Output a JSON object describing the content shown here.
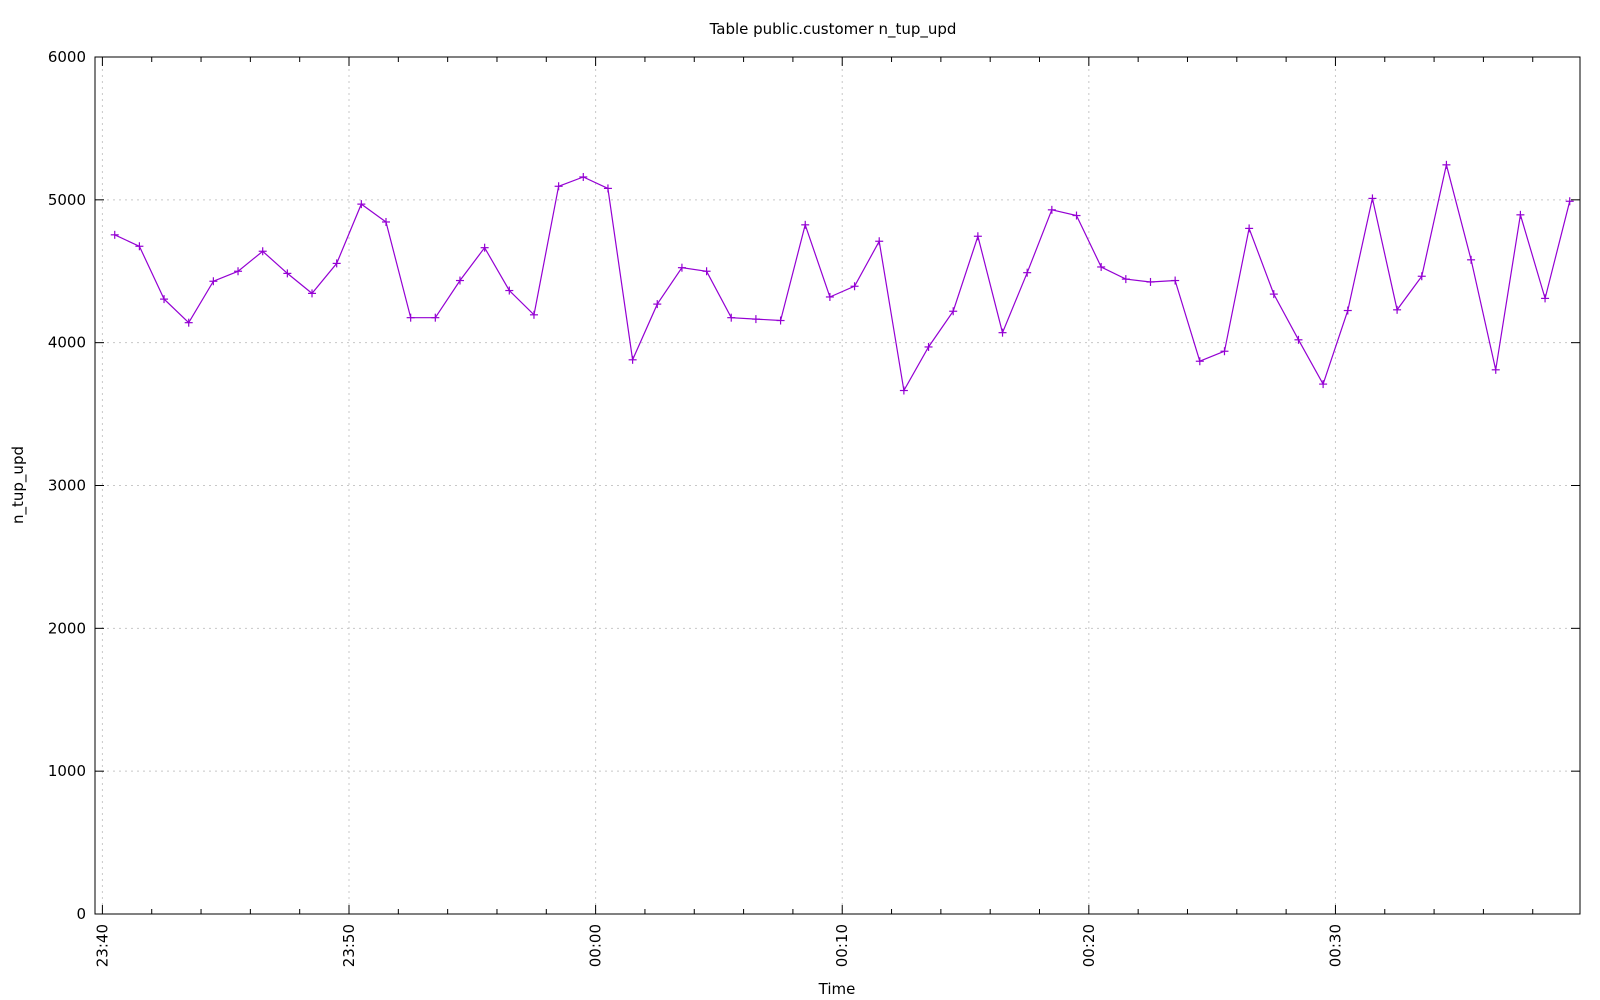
{
  "chart_data": {
    "type": "line",
    "title": "Table public.customer n_tup_upd",
    "xlabel": "Time",
    "ylabel": "n_tup_upd",
    "ylim": [
      0,
      6000
    ],
    "xlim": [
      "23:39:42",
      "00:39:55"
    ],
    "yticks": [
      0,
      1000,
      2000,
      3000,
      4000,
      5000,
      6000
    ],
    "xticks": [
      "23:40",
      "23:50",
      "00:00",
      "00:10",
      "00:20",
      "00:30"
    ],
    "grid": true,
    "legend": "none",
    "color": "#9400d3",
    "series": [
      {
        "x": [
          "23:40:30",
          "23:41:30",
          "23:42:30",
          "23:43:30",
          "23:44:30",
          "23:45:30",
          "23:46:30",
          "23:47:30",
          "23:48:30",
          "23:49:30",
          "23:50:30",
          "23:51:30",
          "23:52:30",
          "23:53:30",
          "23:54:30",
          "23:55:30",
          "23:56:30",
          "23:57:30",
          "23:58:30",
          "23:59:30",
          "00:00:30",
          "00:01:30",
          "00:02:30",
          "00:03:30",
          "00:04:30",
          "00:05:30",
          "00:06:30",
          "00:07:30",
          "00:08:30",
          "00:09:30",
          "00:10:30",
          "00:11:30",
          "00:12:30",
          "00:13:30",
          "00:14:30",
          "00:15:30",
          "00:16:30",
          "00:17:30",
          "00:18:30",
          "00:19:30",
          "00:20:30",
          "00:21:30",
          "00:22:30",
          "00:23:30",
          "00:24:30",
          "00:25:30",
          "00:26:30",
          "00:27:30",
          "00:28:30",
          "00:29:30",
          "00:30:30",
          "00:31:30",
          "00:32:30",
          "00:33:30",
          "00:34:30",
          "00:35:30",
          "00:36:30",
          "00:37:30",
          "00:38:30",
          "00:39:30"
        ],
        "values": [
          4755,
          4675,
          4305,
          4140,
          4430,
          4500,
          4640,
          4485,
          4345,
          4555,
          4970,
          4845,
          4175,
          4175,
          4435,
          4665,
          4365,
          4195,
          5095,
          5160,
          5080,
          3880,
          4270,
          4525,
          4500,
          4175,
          4165,
          4155,
          4825,
          4320,
          4395,
          4710,
          3665,
          3970,
          4220,
          4745,
          4070,
          4490,
          4930,
          4890,
          4530,
          4445,
          4425,
          4435,
          3870,
          3940,
          4800,
          4340,
          4020,
          3710,
          4225,
          5010,
          4230,
          4465,
          5245,
          4580,
          3810,
          4895,
          4310,
          4990
        ]
      }
    ]
  }
}
